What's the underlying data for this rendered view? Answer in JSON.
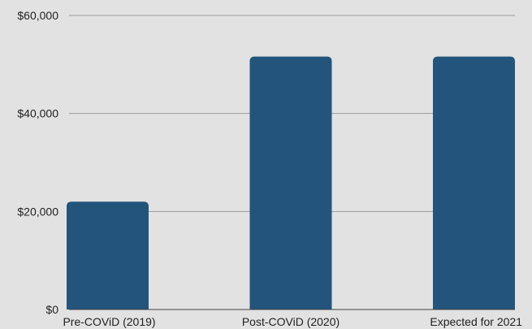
{
  "chart_data": {
    "type": "bar",
    "categories": [
      "Pre-COViD (2019)",
      "Post-COViD (2020)",
      "Expected for 2021"
    ],
    "values": [
      22000,
      51600,
      51600
    ],
    "title": "",
    "xlabel": "",
    "ylabel": "",
    "ylim": [
      0,
      60000
    ],
    "yticks": [
      0,
      20000,
      40000,
      60000
    ],
    "ytick_labels": [
      "$0",
      "$20,000",
      "$40,000",
      "$60,000"
    ],
    "grid": true,
    "colors": {
      "bar": "#23557c",
      "background": "#e2e2e2",
      "grid": "#9a9a9a"
    }
  }
}
